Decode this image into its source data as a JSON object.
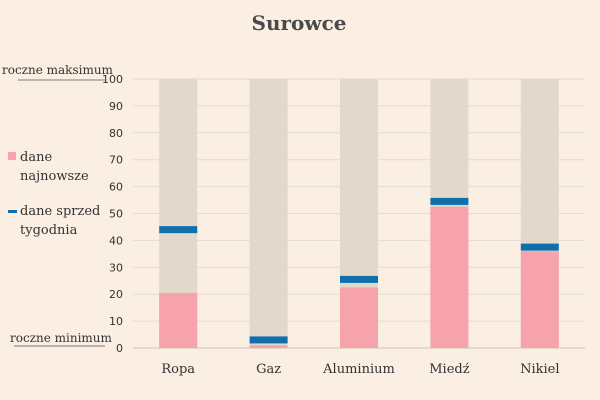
{
  "chart_data": {
    "type": "bar",
    "title": "Surowce",
    "categories": [
      "Ropa",
      "Gaz",
      "Aluminium",
      "Miedź",
      "Nikiel"
    ],
    "series": [
      {
        "name": "dane najnowsze",
        "values": [
          20.5,
          1,
          22.5,
          52.5,
          36
        ]
      },
      {
        "name": "dane sprzed tygodnia",
        "values": [
          44,
          3,
          25.5,
          54.5,
          37.5
        ]
      }
    ],
    "ylim": [
      0,
      100
    ],
    "yticks": [
      0,
      10,
      20,
      30,
      40,
      50,
      60,
      70,
      80,
      90,
      100
    ],
    "annotations": {
      "top": "roczne maksimum",
      "bottom": "roczne minimum"
    },
    "grid": true,
    "legend_position": "left"
  },
  "legend": {
    "latest": "dane najnowsze",
    "week_ago": "dane sprzed tygodnia"
  },
  "colors": {
    "background": "#fbeee2",
    "range_bar": "#e3d8cc",
    "latest": "#f6a3ab",
    "week_ago": "#0f6fad",
    "grid": "#e6dbd1",
    "text": "#333333"
  }
}
